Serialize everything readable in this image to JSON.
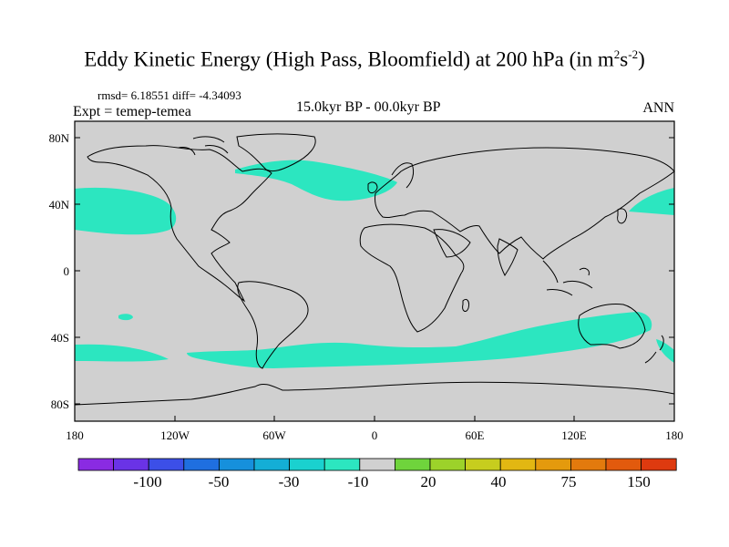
{
  "title": {
    "main": "Eddy Kinetic Energy (High Pass, Bloomfield) at 200 hPa (in m",
    "sup1": "2",
    "mid": "s",
    "sup2": "-2",
    "end": ")"
  },
  "stats": "rmsd= 6.18551 diff= -4.34093",
  "expt": "Expt = temep-temea",
  "period": "15.0kyr BP - 00.0kyr BP",
  "season": "ANN",
  "lat_labels": [
    "80N",
    "40N",
    "0",
    "40S",
    "80S"
  ],
  "lon_labels": [
    "180",
    "120W",
    "60W",
    "0",
    "60E",
    "120E",
    "180"
  ],
  "colorbar": {
    "colors": [
      "#8a2be2",
      "#6a33e6",
      "#3c4fe8",
      "#1f6fe0",
      "#1690dc",
      "#14aed6",
      "#1ad1cf",
      "#2ce6c0",
      "#d0d0d0",
      "#6fd43c",
      "#9cd22a",
      "#c7cd1e",
      "#e2b712",
      "#e49a0d",
      "#e37a0d",
      "#e25a0d",
      "#de3a0f"
    ],
    "labels": [
      "-100",
      "-50",
      "-30",
      "-10",
      "20",
      "40",
      "75",
      "150"
    ]
  },
  "colors": {
    "land_ocean": "#d0d0d0",
    "anomaly": "#2ce6c0",
    "coast": "#000000"
  }
}
